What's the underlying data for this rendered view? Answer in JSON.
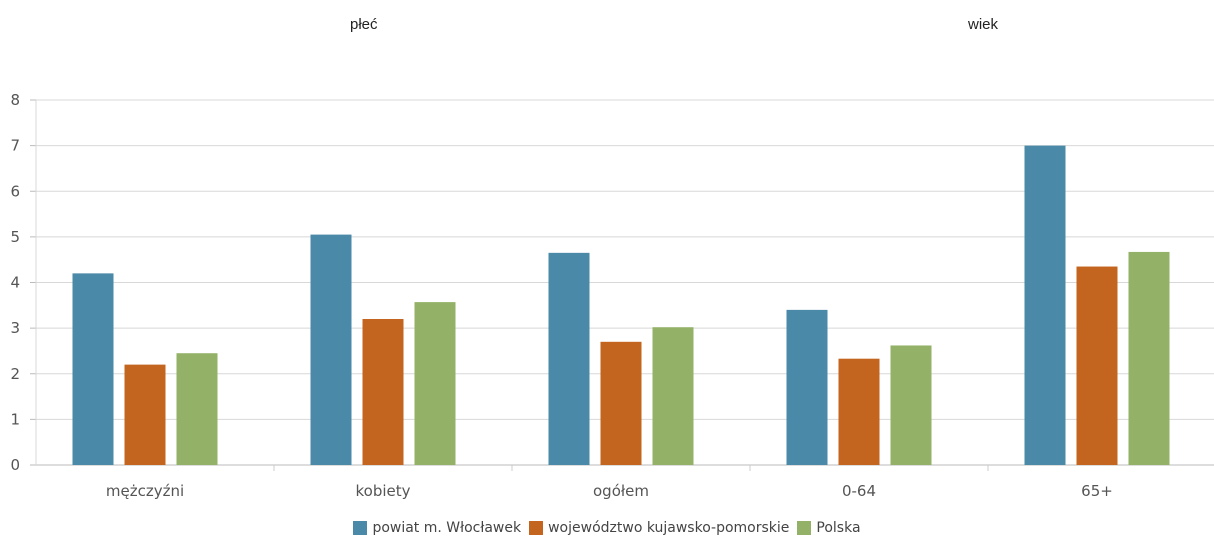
{
  "group_titles": {
    "left": "płeć",
    "right": "wiek"
  },
  "chart_data": {
    "type": "bar",
    "title": "",
    "xlabel": "",
    "ylabel": "",
    "ylim": [
      0,
      8
    ],
    "yticks": [
      0,
      1,
      2,
      3,
      4,
      5,
      6,
      7,
      8
    ],
    "grid": true,
    "legend_position": "bottom",
    "categories": [
      "mężczyźni",
      "kobiety",
      "ogółem",
      "0-64",
      "65+"
    ],
    "series": [
      {
        "name": "powiat m. Włocławek",
        "color": "#4a8aa8",
        "values": [
          4.2,
          5.05,
          4.65,
          3.4,
          7.0
        ]
      },
      {
        "name": "województwo kujawsko-pomorskie",
        "color": "#c4651f",
        "values": [
          2.2,
          3.2,
          2.7,
          2.33,
          4.35
        ]
      },
      {
        "name": "Polska",
        "color": "#93b267",
        "values": [
          2.45,
          3.57,
          3.02,
          2.62,
          4.67
        ]
      }
    ]
  }
}
